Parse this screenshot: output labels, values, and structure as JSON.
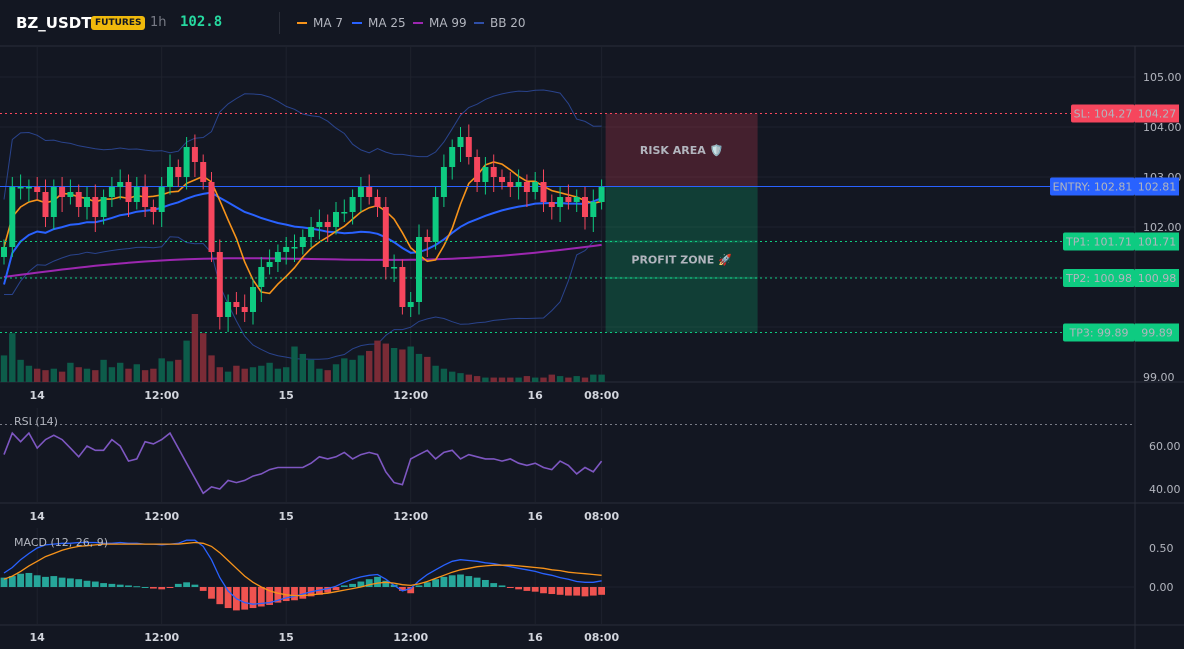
{
  "header": {
    "symbol": "BZ_USDT",
    "badge": "FUTURES",
    "timeframe": "1h",
    "last_price": "102.8",
    "legend": [
      {
        "label": "MA 7",
        "color": "#f7931a"
      },
      {
        "label": "MA 25",
        "color": "#2962ff"
      },
      {
        "label": "MA 99",
        "color": "#9c27b0"
      },
      {
        "label": "BB 20",
        "color": "#2f4fa8"
      }
    ]
  },
  "colors": {
    "up": "#0ecb81",
    "down": "#f6465d",
    "entry": "#2962ff",
    "sl": "#f6465d",
    "tp": "#0ecb81"
  },
  "chart_data": [
    {
      "type": "candlestick",
      "title": "",
      "ylim": [
        99.0,
        105.5
      ],
      "y_ticks": [
        "105.00",
        "104.00",
        "103.00",
        "102.00",
        "99.00"
      ],
      "x_ticks": [
        "14",
        "12:00",
        "15",
        "12:00",
        "16",
        "08:00"
      ],
      "closes": [
        101.6,
        102.8,
        102.8,
        102.8,
        102.7,
        102.2,
        102.8,
        102.6,
        102.7,
        102.4,
        102.6,
        102.2,
        102.6,
        102.8,
        102.9,
        102.5,
        102.8,
        102.4,
        102.3,
        102.8,
        103.2,
        103.0,
        103.6,
        103.3,
        102.9,
        101.5,
        100.2,
        100.5,
        100.4,
        100.3,
        100.8,
        101.2,
        101.3,
        101.5,
        101.6,
        101.6,
        101.8,
        102.0,
        102.1,
        102.0,
        102.3,
        102.3,
        102.6,
        102.8,
        102.6,
        102.4,
        101.2,
        101.2,
        100.4,
        100.5,
        101.8,
        101.7,
        102.6,
        103.2,
        103.6,
        103.8,
        103.4,
        102.9,
        103.2,
        103.0,
        102.9,
        102.8,
        102.9,
        102.7,
        102.9,
        102.5,
        102.4,
        102.6,
        102.5,
        102.6,
        102.2,
        102.5,
        102.8
      ],
      "opens": [
        101.4,
        101.6,
        102.8,
        102.8,
        102.8,
        102.7,
        102.2,
        102.8,
        102.6,
        102.7,
        102.4,
        102.6,
        102.2,
        102.6,
        102.8,
        102.9,
        102.5,
        102.8,
        102.4,
        102.3,
        102.8,
        103.2,
        103.0,
        103.6,
        103.3,
        102.9,
        101.5,
        100.2,
        100.5,
        100.4,
        100.3,
        100.8,
        101.2,
        101.3,
        101.5,
        101.6,
        101.6,
        101.8,
        102.0,
        102.1,
        102.0,
        102.3,
        102.3,
        102.6,
        102.8,
        102.6,
        102.4,
        101.2,
        101.2,
        100.4,
        100.5,
        101.8,
        101.7,
        102.6,
        103.2,
        103.6,
        103.8,
        103.4,
        102.9,
        103.2,
        103.0,
        102.9,
        102.8,
        102.9,
        102.7,
        102.9,
        102.5,
        102.4,
        102.6,
        102.5,
        102.6,
        102.2,
        102.5
      ],
      "volume": [
        18,
        33,
        15,
        11,
        9,
        8,
        9,
        7,
        13,
        10,
        9,
        8,
        15,
        10,
        13,
        9,
        12,
        8,
        9,
        16,
        14,
        15,
        28,
        46,
        33,
        18,
        10,
        7,
        11,
        9,
        10,
        11,
        13,
        9,
        10,
        24,
        19,
        15,
        9,
        8,
        12,
        16,
        15,
        18,
        21,
        28,
        26,
        23,
        22,
        24,
        19,
        17,
        11,
        9,
        7,
        6,
        5,
        4,
        3,
        3,
        3,
        3,
        3,
        4,
        3,
        3,
        5,
        4,
        3,
        4,
        3,
        5,
        5
      ],
      "entry": {
        "label": "ENTRY: 102.81",
        "value": 102.81,
        "tag": "102.81"
      },
      "stop_loss": {
        "label": "SL: 104.27",
        "value": 104.27,
        "tag": "104.27"
      },
      "take_profits": [
        {
          "label": "TP1: 101.71",
          "value": 101.71,
          "tag": "101.71"
        },
        {
          "label": "TP2: 100.98",
          "value": 100.98,
          "tag": "100.98"
        },
        {
          "label": "TP3: 99.89",
          "value": 99.89,
          "tag": "99.89"
        }
      ],
      "zones": {
        "risk_label": "RISK AREA 🛡️",
        "profit_label": "PROFIT ZONE 🚀"
      }
    },
    {
      "type": "line",
      "title": "RSI (14)",
      "ylim": [
        35,
        70
      ],
      "y_ticks": [
        "60.00",
        "40.00"
      ],
      "values": [
        56,
        66,
        62,
        66,
        59,
        63,
        65,
        63,
        59,
        55,
        60,
        58,
        58,
        63,
        60,
        53,
        54,
        62,
        61,
        63,
        66,
        59,
        52,
        45,
        38,
        41,
        40,
        44,
        43,
        44,
        46,
        47,
        49,
        50,
        50,
        50,
        50,
        52,
        55,
        54,
        55,
        57,
        54,
        56,
        57,
        56,
        48,
        43,
        42,
        54,
        56,
        58,
        54,
        57,
        58,
        54,
        56,
        55,
        54,
        54,
        53,
        54,
        52,
        51,
        52,
        50,
        49,
        53,
        51,
        47,
        50,
        48,
        53
      ],
      "x_ticks": [
        "14",
        "12:00",
        "15",
        "12:00",
        "16",
        "08:00"
      ]
    },
    {
      "type": "bar",
      "title": "MACD (12, 26, 9)",
      "ylim": [
        -0.45,
        0.75
      ],
      "y_ticks": [
        "0.50",
        "0.00"
      ],
      "histogram": [
        0.12,
        0.14,
        0.17,
        0.18,
        0.15,
        0.13,
        0.14,
        0.12,
        0.11,
        0.1,
        0.08,
        0.07,
        0.05,
        0.04,
        0.03,
        0.02,
        0.01,
        0.0,
        -0.02,
        -0.03,
        -0.01,
        0.04,
        0.06,
        0.03,
        -0.05,
        -0.15,
        -0.22,
        -0.27,
        -0.3,
        -0.29,
        -0.27,
        -0.25,
        -0.23,
        -0.2,
        -0.18,
        -0.17,
        -0.15,
        -0.12,
        -0.1,
        -0.07,
        -0.04,
        0.02,
        0.04,
        0.07,
        0.1,
        0.13,
        0.08,
        0.03,
        -0.05,
        -0.08,
        0.02,
        0.06,
        0.1,
        0.13,
        0.15,
        0.16,
        0.14,
        0.12,
        0.09,
        0.05,
        0.02,
        -0.01,
        -0.03,
        -0.05,
        -0.06,
        -0.08,
        -0.09,
        -0.1,
        -0.11,
        -0.11,
        -0.12,
        -0.11,
        -0.1
      ],
      "macd": [
        0.18,
        0.25,
        0.35,
        0.43,
        0.5,
        0.54,
        0.55,
        0.56,
        0.56,
        0.57,
        0.57,
        0.57,
        0.56,
        0.56,
        0.57,
        0.56,
        0.56,
        0.55,
        0.55,
        0.54,
        0.55,
        0.56,
        0.6,
        0.6,
        0.52,
        0.35,
        0.12,
        -0.05,
        -0.15,
        -0.2,
        -0.22,
        -0.21,
        -0.2,
        -0.17,
        -0.14,
        -0.12,
        -0.09,
        -0.06,
        -0.04,
        -0.02,
        0.01,
        0.06,
        0.1,
        0.13,
        0.15,
        0.16,
        0.1,
        0.02,
        -0.05,
        -0.02,
        0.08,
        0.16,
        0.22,
        0.28,
        0.33,
        0.35,
        0.34,
        0.33,
        0.31,
        0.3,
        0.28,
        0.26,
        0.24,
        0.22,
        0.2,
        0.17,
        0.15,
        0.12,
        0.1,
        0.07,
        0.06,
        0.06,
        0.08
      ],
      "signal": [
        0.1,
        0.14,
        0.2,
        0.27,
        0.33,
        0.39,
        0.43,
        0.47,
        0.5,
        0.52,
        0.53,
        0.54,
        0.55,
        0.55,
        0.55,
        0.55,
        0.55,
        0.55,
        0.55,
        0.55,
        0.55,
        0.55,
        0.56,
        0.57,
        0.56,
        0.52,
        0.44,
        0.34,
        0.24,
        0.14,
        0.06,
        0.0,
        -0.05,
        -0.08,
        -0.1,
        -0.11,
        -0.11,
        -0.1,
        -0.09,
        -0.08,
        -0.06,
        -0.04,
        -0.02,
        0.0,
        0.03,
        0.05,
        0.06,
        0.05,
        0.03,
        0.02,
        0.04,
        0.07,
        0.11,
        0.15,
        0.19,
        0.22,
        0.24,
        0.26,
        0.27,
        0.28,
        0.28,
        0.28,
        0.27,
        0.26,
        0.25,
        0.24,
        0.22,
        0.21,
        0.19,
        0.18,
        0.17,
        0.16,
        0.15
      ],
      "x_ticks": [
        "14",
        "12:00",
        "15",
        "12:00",
        "16",
        "08:00"
      ]
    }
  ]
}
